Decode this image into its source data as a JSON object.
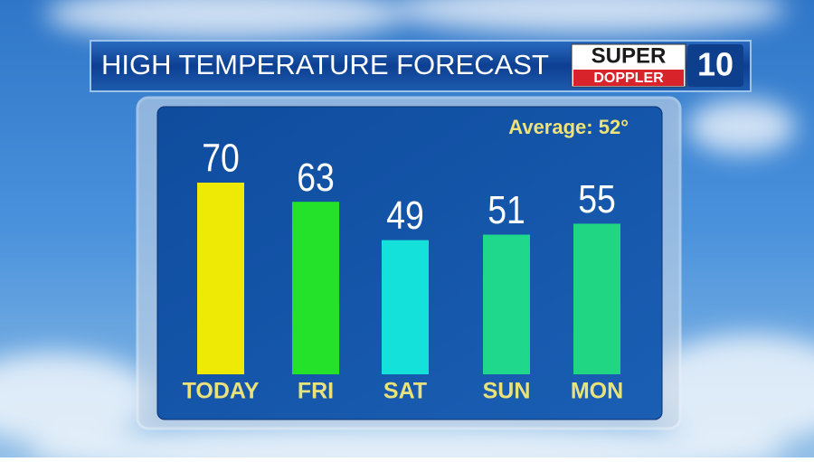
{
  "chart_data": {
    "type": "bar",
    "title": "HIGH TEMPERATURE FORECAST",
    "annotation": "Average: 52°",
    "categories": [
      "TODAY",
      "FRI",
      "SAT",
      "SUN",
      "MON"
    ],
    "values": [
      70,
      63,
      49,
      51,
      55
    ],
    "colors": [
      "#eeea05",
      "#24e22a",
      "#14e2da",
      "#1fd88c",
      "#20d682"
    ]
  },
  "logo": {
    "line1": "SUPER",
    "line2": "DOPPLER",
    "number": "10"
  }
}
